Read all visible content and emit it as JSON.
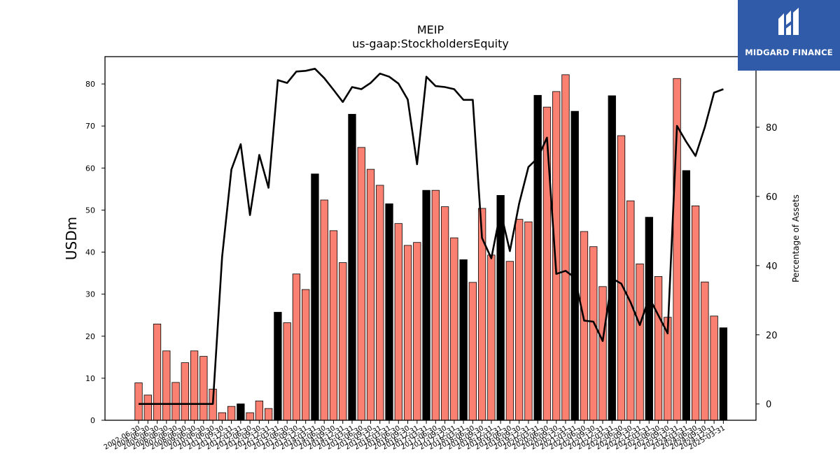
{
  "logo": {
    "text": "MIDGARD FINANCE",
    "icon": "midgard-m-icon",
    "background": "#2f5ba8"
  },
  "chart_data": {
    "type": "bar",
    "title": "MEIP",
    "subtitle": "us-gaap:StockholdersEquity",
    "ylabel": "USDm",
    "y2label": "Percentage of Assets",
    "ylim": [
      0,
      86.5
    ],
    "y2lim": [
      -4.7,
      100.4
    ],
    "yticks": [
      0,
      10,
      20,
      30,
      40,
      50,
      60,
      70,
      80
    ],
    "y2ticks": [
      0,
      20,
      40,
      60,
      80
    ],
    "grid": false,
    "colors": {
      "annual": "#000000",
      "quarterly": "#fa8072",
      "line": "#000000"
    },
    "x_tick_labels": [
      "2002-06-30",
      "2004-06-30",
      "2005-06-30",
      "2006-06-30",
      "2007-06-30",
      "2008-06-30",
      "2009-06-30",
      "2010-06-30",
      "2011-06-30",
      "2011-09-30",
      "2011-12-31",
      "2012-03-31",
      "2012-06-30",
      "2012-09-30",
      "2012-12-31",
      "2013-03-31",
      "2013-06-30",
      "2013-09-30",
      "2013-12-31",
      "2014-03-31",
      "2014-06-30",
      "2014-09-30",
      "2014-12-31",
      "2015-03-31",
      "2015-06-30",
      "2015-09-30",
      "2015-12-31",
      "2016-03-31",
      "2016-06-30",
      "2016-09-30",
      "2016-12-31",
      "2017-03-31",
      "2017-06-30",
      "2017-09-30",
      "2017-12-31",
      "2018-03-31",
      "2018-06-30",
      "2018-09-30",
      "2018-12-31",
      "2019-03-31",
      "2019-06-30",
      "2019-09-30",
      "2019-12-31",
      "2020-03-31",
      "2020-06-30",
      "2020-09-30",
      "2020-12-31",
      "2021-03-31",
      "2021-06-30",
      "2021-09-30",
      "2021-12-31",
      "2022-03-31",
      "2022-06-30",
      "2022-09-30",
      "2022-12-31",
      "2023-03-31",
      "2023-06-30",
      "2023-09-30",
      "2023-12-31",
      "2024-03-31",
      "2024-06-30",
      "2024-09-30",
      "2024-12-31",
      "2025-03-31"
    ],
    "series": [
      {
        "kind": "bar",
        "values": [
          8.9,
          6.0,
          22.9,
          16.5,
          9.0,
          13.7,
          16.5,
          15.2,
          7.4,
          1.8,
          3.3,
          3.9,
          1.8,
          4.6,
          2.8,
          25.7,
          23.2,
          34.8,
          31.1,
          58.6,
          52.4,
          45.1,
          37.5,
          72.8,
          64.9,
          59.7,
          55.9,
          51.5,
          46.8,
          41.6,
          42.3,
          54.7,
          54.7,
          50.8,
          43.4,
          38.2,
          32.8,
          50.4,
          39.3,
          53.5,
          37.8,
          47.8,
          47.2,
          77.3,
          74.5,
          78.2,
          82.2,
          73.5,
          44.9,
          41.3,
          31.8,
          77.2,
          67.7,
          52.2,
          37.2,
          48.3,
          34.2,
          24.5,
          81.3,
          59.4,
          51.0,
          32.9,
          24.8,
          22.0
        ],
        "annual": [
          0,
          0,
          0,
          0,
          0,
          0,
          0,
          0,
          0,
          0,
          0,
          1,
          0,
          0,
          0,
          1,
          0,
          0,
          0,
          1,
          0,
          0,
          0,
          1,
          0,
          0,
          0,
          1,
          0,
          0,
          0,
          1,
          0,
          0,
          0,
          1,
          0,
          0,
          0,
          1,
          0,
          0,
          0,
          1,
          0,
          0,
          0,
          1,
          0,
          0,
          0,
          1,
          0,
          0,
          0,
          1,
          0,
          0,
          0,
          1,
          0,
          0,
          0,
          1
        ]
      },
      {
        "kind": "line",
        "axis": "right",
        "values": [
          0,
          0,
          0,
          0,
          0,
          0,
          0,
          0,
          0,
          42.5,
          67.8,
          75.1,
          54.6,
          72.0,
          62.5,
          93.6,
          92.8,
          96.1,
          96.3,
          96.9,
          94.2,
          90.8,
          87.3,
          91.6,
          91.0,
          92.8,
          95.5,
          94.6,
          92.6,
          88.0,
          69.3,
          94.6,
          91.9,
          91.6,
          91.0,
          87.9,
          87.9,
          48.0,
          42.1,
          55.7,
          44.2,
          58.0,
          68.5,
          71.1,
          77.0,
          37.6,
          38.5,
          36.5,
          24.1,
          23.8,
          18.2,
          36.3,
          34.8,
          29.4,
          22.8,
          30.8,
          25.6,
          20.4,
          80.4,
          75.8,
          71.7,
          80.0,
          90.0,
          91.0
        ]
      }
    ]
  }
}
